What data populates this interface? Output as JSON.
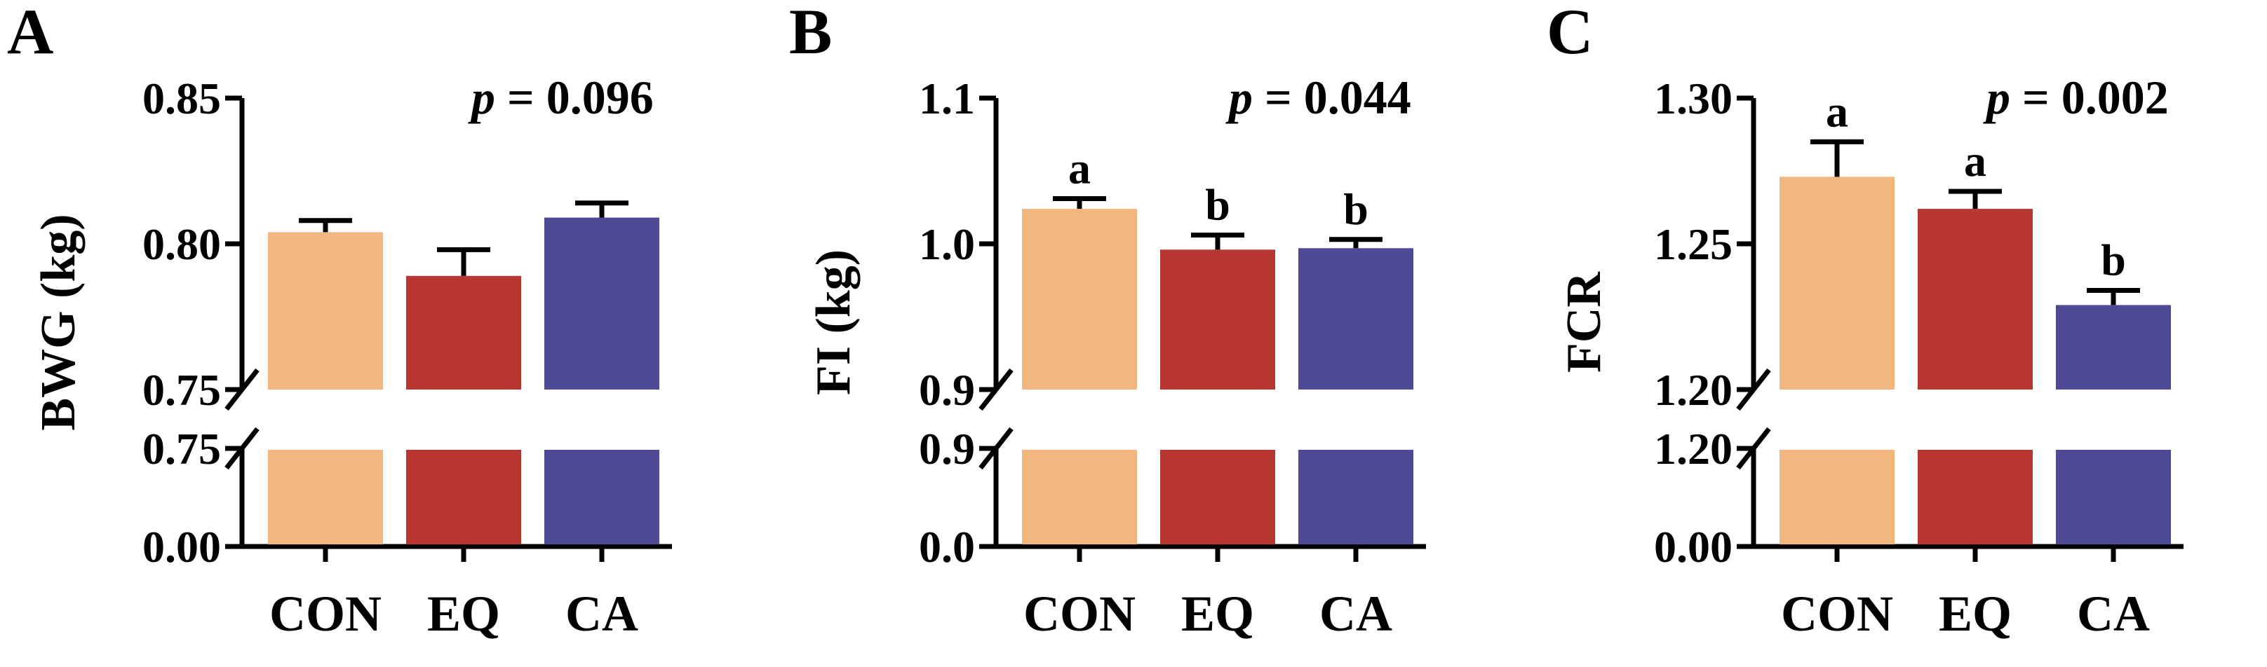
{
  "colors": {
    "CON": "#F2B77E",
    "EQ": "#B83632",
    "CA": "#4F4A97",
    "axis": "#000000"
  },
  "chart_data": [
    {
      "panel": "A",
      "type": "bar",
      "categories": [
        "CON",
        "EQ",
        "CA"
      ],
      "values": [
        0.804,
        0.789,
        0.809
      ],
      "errors": [
        0.004,
        0.009,
        0.005
      ],
      "sig_letters": [
        "",
        "",
        ""
      ],
      "ylabel": "BWG (kg)",
      "p_label": "p",
      "p_text": "= 0.096",
      "upper_ticks": [
        "0.85",
        "0.80",
        "0.75"
      ],
      "lower_ticks": [
        "0.75",
        "0.00"
      ],
      "ylim_upper": [
        0.75,
        0.85
      ],
      "ylim_lower": [
        0.0,
        0.75
      ],
      "axis_break": true,
      "grid": false
    },
    {
      "panel": "B",
      "type": "bar",
      "categories": [
        "CON",
        "EQ",
        "CA"
      ],
      "values": [
        1.024,
        0.996,
        0.997
      ],
      "errors": [
        0.007,
        0.01,
        0.006
      ],
      "sig_letters": [
        "a",
        "b",
        "b"
      ],
      "ylabel": "FI (kg)",
      "p_label": "p",
      "p_text": "= 0.044",
      "upper_ticks": [
        "1.1",
        "1.0",
        "0.9"
      ],
      "lower_ticks": [
        "0.9",
        "0.0"
      ],
      "ylim_upper": [
        0.9,
        1.1
      ],
      "ylim_lower": [
        0.0,
        0.9
      ],
      "axis_break": true,
      "grid": false
    },
    {
      "panel": "C",
      "type": "bar",
      "categories": [
        "CON",
        "EQ",
        "CA"
      ],
      "values": [
        1.273,
        1.262,
        1.229
      ],
      "errors": [
        0.012,
        0.006,
        0.005
      ],
      "sig_letters": [
        "a",
        "a",
        "b"
      ],
      "ylabel": "FCR",
      "p_label": "p",
      "p_text": "= 0.002",
      "upper_ticks": [
        "1.30",
        "1.25",
        "1.20"
      ],
      "lower_ticks": [
        "1.20",
        "0.00"
      ],
      "ylim_upper": [
        1.2,
        1.3
      ],
      "ylim_lower": [
        0.0,
        1.2
      ],
      "axis_break": true,
      "grid": false
    }
  ]
}
